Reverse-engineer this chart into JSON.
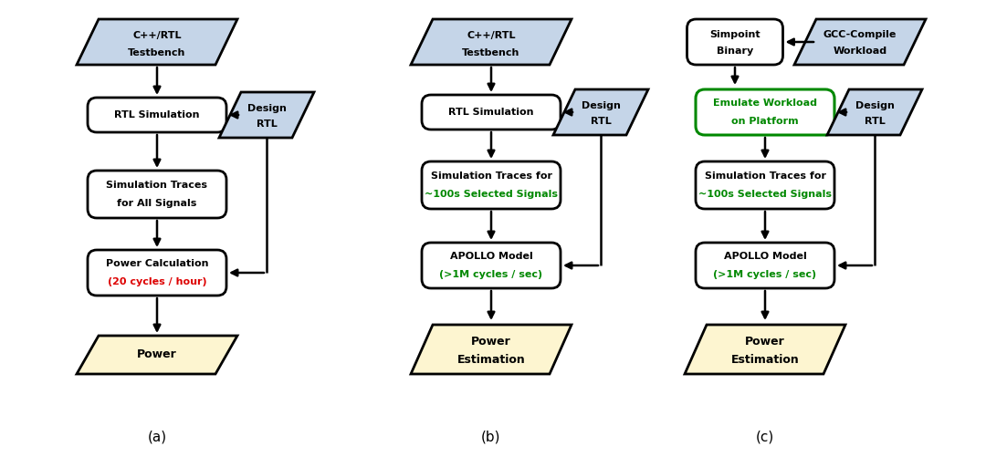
{
  "bg_color": "#ffffff",
  "fig_width": 10.8,
  "fig_height": 5.01,
  "colors": {
    "parallelogram_blue": "#c5d5e8",
    "parallelogram_yellow": "#fdf5d0",
    "rect_white": "#ffffff",
    "border_black": "#000000",
    "text_black": "#000000",
    "text_red": "#dd0000",
    "text_green": "#008800",
    "rect_green_border": "#008800"
  },
  "label_a": "(a)",
  "label_b": "(b)",
  "label_c": "(c)"
}
